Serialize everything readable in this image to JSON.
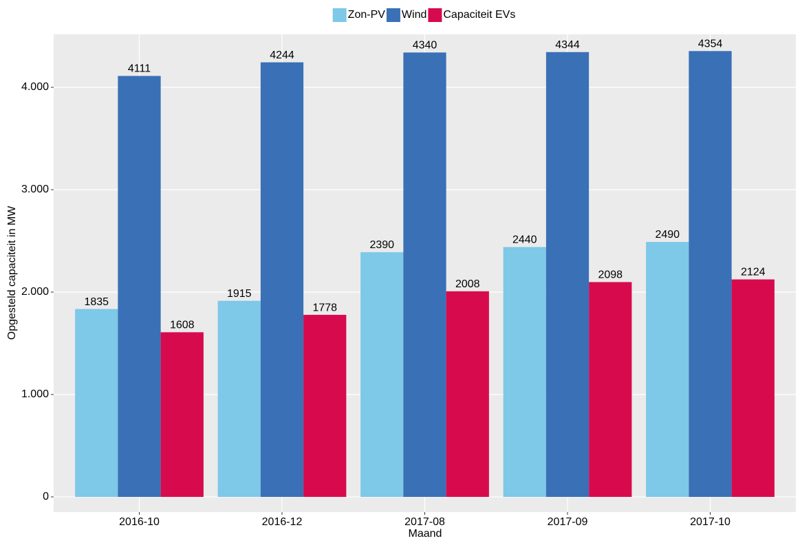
{
  "chart_data": {
    "type": "bar",
    "x_label": "Maand",
    "y_label": "Opgesteld capaciteit in MW",
    "categories": [
      "2016-10",
      "2016-12",
      "2017-08",
      "2017-09",
      "2017-10"
    ],
    "series": [
      {
        "name": "Zon-PV",
        "color": "#7ec8e8",
        "values": [
          1835,
          1915,
          2390,
          2440,
          2490
        ]
      },
      {
        "name": "Wind",
        "color": "#3a70b6",
        "values": [
          4111,
          4244,
          4340,
          4344,
          4354
        ]
      },
      {
        "name": "Capaciteit EVs",
        "color": "#d80a4e",
        "values": [
          1608,
          1778,
          2008,
          2098,
          2124
        ]
      }
    ],
    "ylim": [
      -148,
      4517
    ],
    "yticks": [
      0,
      {
        "value": 1000,
        "label": "1.000"
      },
      {
        "value": 2000,
        "label": "2.000"
      },
      {
        "value": 3000,
        "label": "3.000"
      },
      {
        "value": 4000,
        "label": "4.000"
      }
    ],
    "grid": true,
    "legend_position": "top"
  }
}
